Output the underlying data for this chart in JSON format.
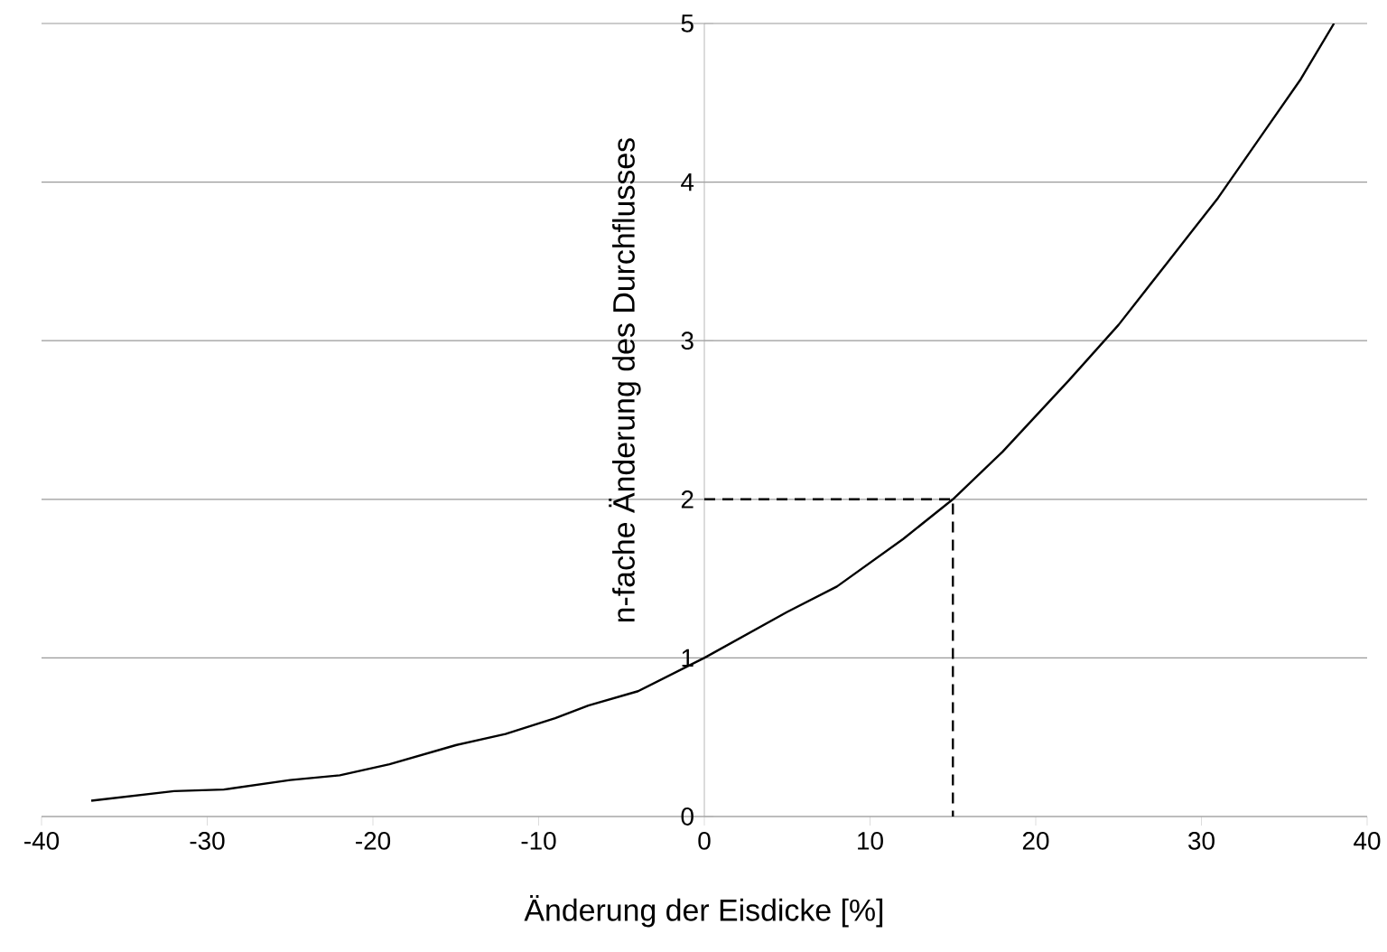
{
  "chart_data": {
    "type": "line",
    "xlabel": "Änderung der Eisdicke [%]",
    "ylabel": "n-fache Änderung des Durchflusses",
    "xlim": [
      -40,
      40
    ],
    "xticks": [
      -40,
      -30,
      -20,
      -10,
      0,
      10,
      20,
      30,
      40
    ],
    "ylim": [
      0,
      5
    ],
    "yticks": [
      0,
      1,
      2,
      3,
      4,
      5
    ],
    "grid": "y",
    "marker": "none",
    "series": [
      {
        "color": "#000000",
        "line_style": "solid",
        "x": [
          -37,
          -32,
          -29,
          -25,
          -22,
          -19,
          -15,
          -12,
          -9,
          -7,
          -4,
          0,
          5,
          8,
          12,
          15,
          18,
          22,
          25,
          28,
          31,
          34,
          36,
          38
        ],
        "values": [
          0.1,
          0.16,
          0.17,
          0.23,
          0.26,
          0.33,
          0.45,
          0.52,
          0.62,
          0.7,
          0.79,
          1.0,
          1.29,
          1.45,
          1.75,
          2.0,
          2.3,
          2.75,
          3.1,
          3.5,
          3.9,
          4.35,
          4.65,
          5.0
        ]
      },
      {
        "color": "#000000",
        "line_style": "dashed",
        "x": [
          0,
          15,
          15
        ],
        "values": [
          2,
          2,
          0
        ]
      }
    ]
  }
}
